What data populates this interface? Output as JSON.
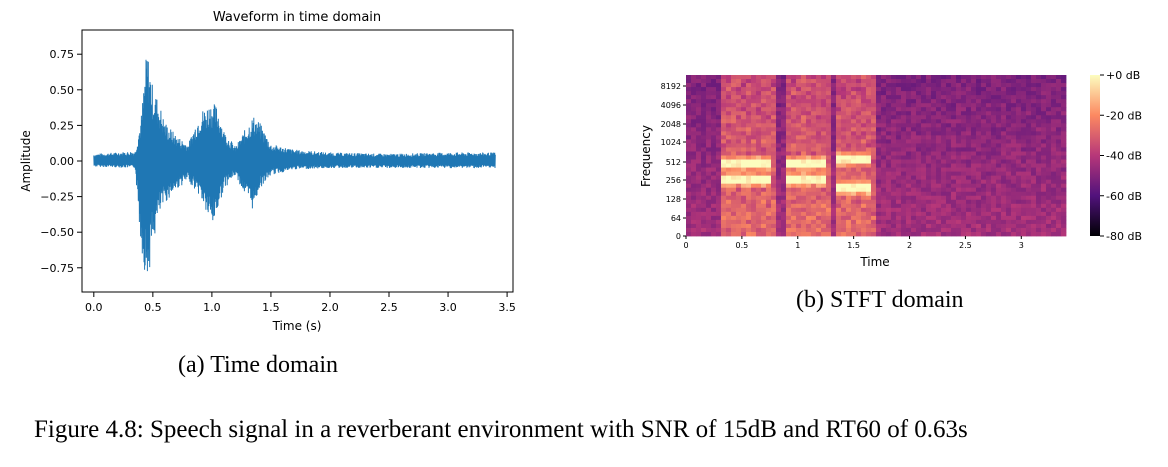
{
  "chart_data": [
    {
      "type": "line",
      "title": "Waveform in time domain",
      "xlabel": "Time (s)",
      "ylabel": "Amplitude",
      "xlim": [
        -0.1,
        3.55
      ],
      "ylim": [
        -0.92,
        0.92
      ],
      "xticks": [
        "0.0",
        "0.5",
        "1.0",
        "1.5",
        "2.0",
        "2.5",
        "3.0",
        "3.5"
      ],
      "yticks": [
        "0.75",
        "0.50",
        "0.25",
        "0.00",
        "−0.25",
        "−0.50",
        "−0.75"
      ],
      "series": [
        {
          "color": "#1f77b4",
          "envelope": {
            "x": [
              0.0,
              0.35,
              0.4,
              0.45,
              0.5,
              0.55,
              0.6,
              0.7,
              0.8,
              0.9,
              1.0,
              1.05,
              1.1,
              1.2,
              1.3,
              1.35,
              1.4,
              1.5,
              1.7,
              2.0,
              2.5,
              3.0,
              3.4
            ],
            "upper": [
              0.05,
              0.07,
              0.3,
              0.8,
              0.52,
              0.42,
              0.28,
              0.18,
              0.12,
              0.35,
              0.42,
              0.38,
              0.22,
              0.1,
              0.25,
              0.32,
              0.28,
              0.12,
              0.08,
              0.06,
              0.05,
              0.06,
              0.06
            ],
            "lower": [
              -0.04,
              -0.05,
              -0.6,
              -0.88,
              -0.6,
              -0.4,
              -0.3,
              -0.2,
              -0.14,
              -0.25,
              -0.48,
              -0.35,
              -0.2,
              -0.1,
              -0.28,
              -0.35,
              -0.2,
              -0.1,
              -0.06,
              -0.05,
              -0.05,
              -0.05,
              -0.05
            ]
          }
        }
      ]
    },
    {
      "type": "heatmap",
      "xlabel": "Time",
      "ylabel": "Frequency",
      "xlim": [
        0,
        3.4
      ],
      "xticks": [
        "0",
        "0.5",
        "1",
        "1.5",
        "2",
        "2.5",
        "3"
      ],
      "yticks": [
        "0",
        "64",
        "128",
        "256",
        "512",
        "1024",
        "2048",
        "4096",
        "8192"
      ],
      "colorbar": {
        "labels": [
          "+0 dB",
          "-20 dB",
          "-40 dB",
          "-60 dB",
          "-80 dB"
        ],
        "range_db": [
          -80,
          0
        ],
        "colors": [
          "#fcfdbf",
          "#fc8961",
          "#b73779",
          "#51127c",
          "#000004"
        ]
      },
      "harmonics": [
        {
          "t0": 0.3,
          "t1": 0.75,
          "freq": 256
        },
        {
          "t0": 0.3,
          "t1": 0.75,
          "freq": 512
        },
        {
          "t0": 0.9,
          "t1": 1.25,
          "freq": 256
        },
        {
          "t0": 0.9,
          "t1": 1.25,
          "freq": 512
        },
        {
          "t0": 1.35,
          "t1": 1.65,
          "freq": 200
        },
        {
          "t0": 1.35,
          "t1": 1.65,
          "freq": 560
        }
      ]
    }
  ],
  "captions": {
    "a": "(a) Time domain",
    "b": "(b) STFT domain",
    "figure": "Figure 4.8: Speech signal in a reverberant environment with SNR of 15dB and RT60 of 0.63s"
  }
}
